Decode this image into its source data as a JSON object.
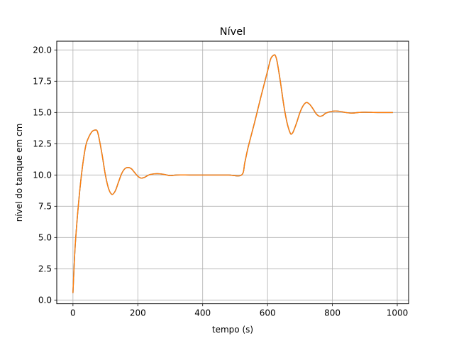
{
  "chart_data": {
    "type": "line",
    "title": "Nível",
    "xlabel": "tempo (s)",
    "ylabel": "nível do tanque em cm",
    "xlim": [
      -50,
      1035
    ],
    "ylim": [
      -0.3,
      20.7
    ],
    "xticks": [
      0,
      200,
      400,
      600,
      800,
      1000
    ],
    "xtick_labels": [
      "0",
      "200",
      "400",
      "600",
      "800",
      "1000"
    ],
    "yticks": [
      0,
      2.5,
      5,
      7.5,
      10,
      12.5,
      15,
      17.5,
      20
    ],
    "ytick_labels": [
      "0.0",
      "2.5",
      "5.0",
      "7.5",
      "10.0",
      "12.5",
      "15.0",
      "17.5",
      "20.0"
    ],
    "grid": true,
    "series": [
      {
        "color": "#1f77b4",
        "x": [
          0,
          5,
          10,
          20,
          30,
          40,
          50,
          60,
          70,
          75,
          80,
          90,
          100,
          110,
          120,
          130,
          140,
          150,
          160,
          170,
          180,
          190,
          200,
          210,
          220,
          230,
          240,
          260,
          280,
          300,
          320,
          360,
          400,
          440,
          480,
          520,
          530,
          540,
          560,
          580,
          600,
          610,
          620,
          625,
          630,
          640,
          650,
          660,
          670,
          675,
          680,
          690,
          700,
          710,
          720,
          730,
          740,
          750,
          760,
          770,
          780,
          800,
          820,
          840,
          860,
          880,
          900,
          940,
          985
        ],
        "y": [
          0.6,
          3.5,
          5.5,
          8.5,
          10.8,
          12.4,
          13.1,
          13.5,
          13.6,
          13.5,
          13.0,
          11.6,
          10.0,
          8.9,
          8.45,
          8.7,
          9.4,
          10.1,
          10.5,
          10.6,
          10.5,
          10.2,
          9.9,
          9.75,
          9.8,
          9.95,
          10.05,
          10.1,
          10.05,
          9.95,
          10.0,
          10.0,
          10.0,
          10.0,
          10.0,
          10.0,
          11.0,
          12.2,
          14.2,
          16.3,
          18.3,
          19.3,
          19.6,
          19.5,
          19.0,
          17.4,
          15.6,
          14.2,
          13.35,
          13.3,
          13.5,
          14.2,
          15.0,
          15.55,
          15.8,
          15.65,
          15.3,
          14.9,
          14.7,
          14.75,
          14.95,
          15.1,
          15.1,
          15.0,
          14.95,
          15.0,
          15.02,
          15.0,
          15.0
        ]
      },
      {
        "color": "#ff7f0e",
        "x": [
          0,
          5,
          10,
          20,
          30,
          40,
          50,
          60,
          70,
          75,
          80,
          90,
          100,
          110,
          120,
          130,
          140,
          150,
          160,
          170,
          180,
          190,
          200,
          210,
          220,
          230,
          240,
          260,
          280,
          300,
          320,
          360,
          400,
          440,
          480,
          520,
          530,
          540,
          560,
          580,
          600,
          610,
          620,
          625,
          630,
          640,
          650,
          660,
          670,
          675,
          680,
          690,
          700,
          710,
          720,
          730,
          740,
          750,
          760,
          770,
          780,
          800,
          820,
          840,
          860,
          880,
          900,
          940,
          985
        ],
        "y": [
          0.6,
          3.5,
          5.5,
          8.5,
          10.8,
          12.4,
          13.1,
          13.5,
          13.6,
          13.5,
          13.0,
          11.6,
          10.0,
          8.9,
          8.45,
          8.7,
          9.4,
          10.1,
          10.5,
          10.6,
          10.5,
          10.2,
          9.9,
          9.75,
          9.8,
          9.95,
          10.05,
          10.1,
          10.05,
          9.95,
          10.0,
          10.0,
          10.0,
          10.0,
          10.0,
          10.0,
          11.0,
          12.2,
          14.2,
          16.3,
          18.3,
          19.3,
          19.6,
          19.5,
          19.0,
          17.4,
          15.6,
          14.2,
          13.35,
          13.3,
          13.5,
          14.2,
          15.0,
          15.55,
          15.8,
          15.65,
          15.3,
          14.9,
          14.7,
          14.75,
          14.95,
          15.1,
          15.1,
          15.0,
          14.95,
          15.0,
          15.02,
          15.0,
          15.0
        ]
      }
    ]
  }
}
